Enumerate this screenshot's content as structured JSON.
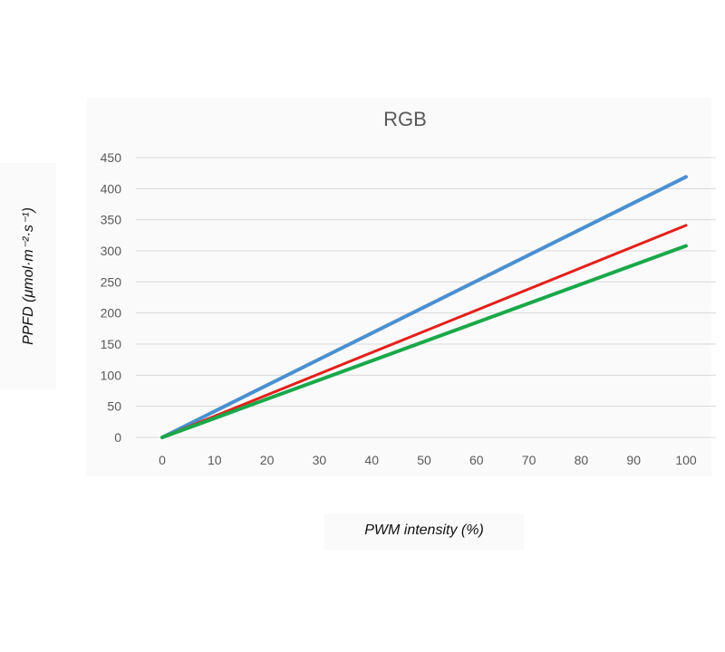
{
  "chart_data": {
    "type": "line",
    "title": "RGB",
    "xlabel": "PWM intensity (%)",
    "ylabel": "PPFD (μmol·m⁻²·s⁻¹)",
    "x": [
      0,
      100
    ],
    "xticks": [
      "0",
      "10",
      "20",
      "30",
      "40",
      "50",
      "60",
      "70",
      "80",
      "90",
      "100"
    ],
    "yticks": [
      "0",
      "50",
      "100",
      "150",
      "200",
      "250",
      "300",
      "350",
      "400",
      "450"
    ],
    "xlim": [
      0,
      100
    ],
    "ylim": [
      0,
      450
    ],
    "grid": true,
    "legend": "none",
    "series": [
      {
        "values": [
          0,
          419
        ],
        "color": "#4a90d0"
      },
      {
        "values": [
          0,
          341
        ],
        "color": "#e3201b"
      },
      {
        "values": [
          0,
          308
        ],
        "color": "#1aa84a"
      }
    ]
  }
}
